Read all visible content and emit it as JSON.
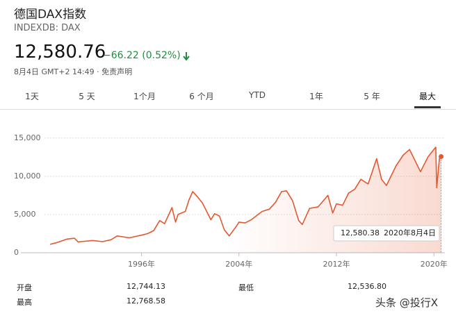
{
  "header": {
    "title": "德国DAX指数",
    "ticker": "INDEXDB: DAX",
    "price": "12,580.76",
    "change": "−66.22 (0.52%)",
    "timestamp": "8月4日 GMT+2 14:49 · 免责声明"
  },
  "tabs": [
    "1天",
    "5 天",
    "1个月",
    "6 个月",
    "YTD",
    "1年",
    "5 年",
    "最大"
  ],
  "chart_data": {
    "type": "line",
    "x": [
      1988.5,
      1989,
      1989.9,
      1990.5,
      1990.8,
      1991,
      1992,
      1992.8,
      1993.5,
      1994,
      1995,
      1996,
      1996.5,
      1997,
      1997.5,
      1997.9,
      1998.5,
      1998.8,
      1999,
      1999.6,
      1999.9,
      2000.2,
      2000.6,
      2001,
      2001.7,
      2002,
      2002.4,
      2002.8,
      2003.2,
      2003.8,
      2004,
      2004.5,
      2005,
      2005.9,
      2006.5,
      2007,
      2007.5,
      2007.9,
      2008.4,
      2008.9,
      2009.2,
      2009.8,
      2010.5,
      2011.3,
      2011.7,
      2012,
      2012.5,
      2013,
      2013.5,
      2014,
      2014.6,
      2015.3,
      2015.7,
      2016.1,
      2016.9,
      2017.5,
      2018,
      2018.9,
      2019.5,
      2020,
      2020.15,
      2020.23,
      2020.45,
      2020.59
    ],
    "series": [
      {
        "name": "DAX",
        "color": "#e4572e",
        "values": [
          1100,
          1300,
          1790,
          1900,
          1400,
          1450,
          1600,
          1450,
          1700,
          2200,
          1950,
          2300,
          2500,
          2900,
          4200,
          3800,
          5900,
          4000,
          5000,
          5400,
          6900,
          8000,
          7300,
          6500,
          4300,
          5100,
          4800,
          3000,
          2200,
          3500,
          4000,
          3900,
          4300,
          5400,
          5700,
          6600,
          8000,
          8100,
          6800,
          4200,
          3700,
          5800,
          6000,
          7500,
          5200,
          6400,
          6200,
          7800,
          8300,
          9600,
          9000,
          12300,
          9600,
          8800,
          11400,
          12800,
          13500,
          10600,
          12500,
          13500,
          13800,
          8500,
          12300,
          12580
        ]
      }
    ],
    "xlim": [
      1986.1,
      2020.9
    ],
    "xticks": [
      {
        "value": 1996,
        "label": "1996年"
      },
      {
        "value": 2004,
        "label": "2004年"
      },
      {
        "value": 2012,
        "label": "2012年"
      },
      {
        "value": 2020,
        "label": "2020年"
      }
    ],
    "ylim": [
      0,
      15800
    ],
    "yticks": [
      0,
      {
        "value": 5000,
        "label": "5,000"
      },
      {
        "value": 10000,
        "label": "10,000"
      },
      {
        "value": 15000,
        "label": "15,000"
      }
    ],
    "grid": true,
    "tooltip": {
      "value": "12,580.38",
      "date": "2020年8月4日"
    }
  },
  "stats": {
    "left": [
      [
        "开盘",
        "12,744.13"
      ],
      [
        "最高",
        "12,768.58"
      ]
    ],
    "right": [
      [
        "最低",
        "12,536.80"
      ]
    ]
  },
  "watermark": "头条 @投行X"
}
